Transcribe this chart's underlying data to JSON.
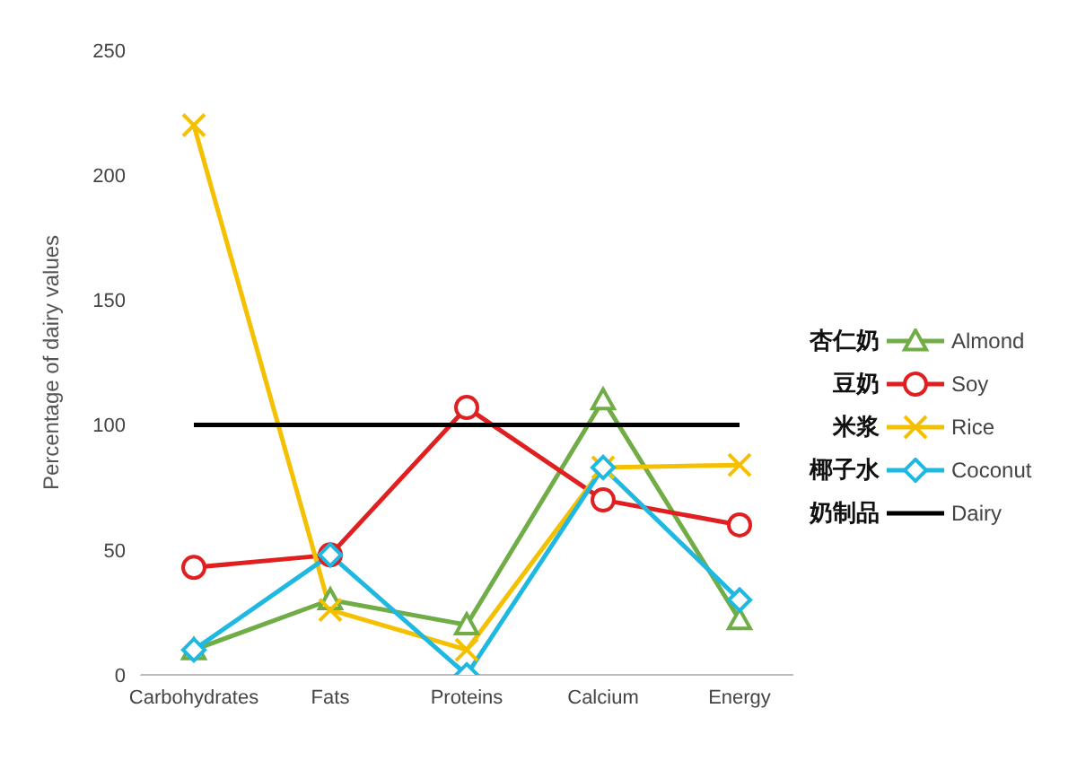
{
  "chart_data": {
    "type": "line",
    "ylabel": "Percentage of dairy values",
    "categories": [
      "Carbohydrates",
      "Fats",
      "Proteins",
      "Calcium",
      "Energy"
    ],
    "series": [
      {
        "name": "Almond",
        "color": "#70ad47",
        "marker": "triangle",
        "values": [
          10,
          30,
          20,
          110,
          22
        ]
      },
      {
        "name": "Soy",
        "color": "#e02020",
        "marker": "circle",
        "values": [
          43,
          48,
          107,
          70,
          60
        ]
      },
      {
        "name": "Rice",
        "color": "#f5c000",
        "marker": "cross",
        "values": [
          220,
          26,
          10,
          83,
          84
        ]
      },
      {
        "name": "Coconut",
        "color": "#1fb8e0",
        "marker": "diamond",
        "values": [
          10,
          48,
          0,
          83,
          30
        ]
      },
      {
        "name": "Dairy",
        "color": "#000000",
        "marker": "none",
        "values": [
          100,
          100,
          100,
          100,
          100
        ]
      }
    ],
    "annotations": [
      "杏仁奶",
      "豆奶",
      "米浆",
      "椰子水",
      "奶制品"
    ],
    "ylim": [
      0,
      250
    ],
    "yticks": [
      0,
      50,
      100,
      150,
      200,
      250
    ],
    "legend": "right"
  }
}
